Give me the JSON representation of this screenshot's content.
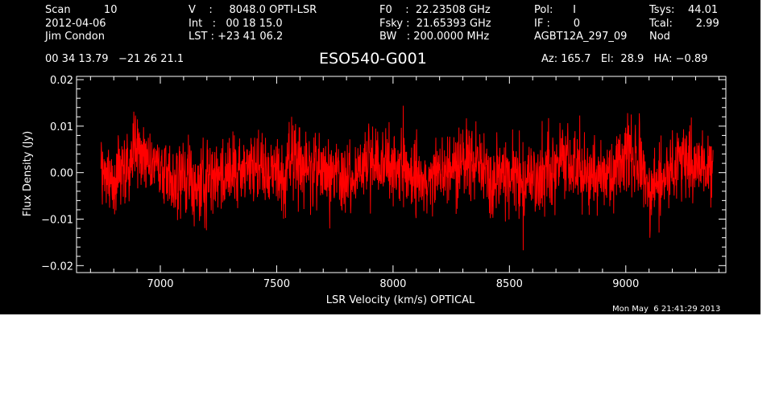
{
  "header": {
    "col1": [
      "Scan          10",
      "2012-04-06",
      "Jim Condon"
    ],
    "col2": [
      "V    :     8048.0 OPTI-LSR",
      "Int   :   00 18 15.0",
      "LST : +23 41 06.2"
    ],
    "col3": [
      "F0    :  22.23508 GHz",
      "Fsky :  21.65393 GHz",
      "BW   : 200.0000 MHz"
    ],
    "col4": [
      "Pol:      I",
      "IF :       0",
      "AGBT12A_297_09"
    ],
    "col5": [
      "Tsys:    44.01",
      "Tcal:       2.99",
      "Nod"
    ],
    "coords": "00 34 13.79   −21 26 21.1",
    "source": "ESO540-G001",
    "az_el_ha": "Az: 165.7   El:  28.9   HA: −0.89"
  },
  "timestamp": "Mon May  6 21:41:29 2013",
  "colors": {
    "background": "#000000",
    "axes": "#ffffff",
    "series": "#ff0000"
  },
  "chart_data": {
    "type": "line",
    "title": "ESO540-G001",
    "xlabel": "LSR Velocity (km/s) OPTICAL",
    "ylabel": "Flux Density (Jy)",
    "xlim": [
      6640,
      9430
    ],
    "ylim": [
      -0.0215,
      0.0207
    ],
    "xticks": [
      7000,
      7500,
      8000,
      8500,
      9000
    ],
    "xtick_labels": [
      "7000",
      "7500",
      "8000",
      "8500",
      "9000"
    ],
    "yticks": [
      -0.02,
      -0.01,
      0.0,
      0.01,
      0.02
    ],
    "ytick_labels": [
      "−0.02",
      "−0.01",
      "0.00",
      "0.01",
      "0.02"
    ],
    "grid": false,
    "legend": "none",
    "series": [
      {
        "color": "#ff0000",
        "x_range": [
          6745,
          9375
        ],
        "noise_sigma_approx": 0.004,
        "x": [
          6745,
          6800,
          6850,
          6900,
          6950,
          7000,
          7050,
          7100,
          7150,
          7200,
          7250,
          7300,
          7350,
          7400,
          7450,
          7500,
          7550,
          7600,
          7650,
          7700,
          7750,
          7800,
          7850,
          7900,
          7950,
          8000,
          8050,
          8100,
          8150,
          8200,
          8250,
          8300,
          8350,
          8400,
          8450,
          8500,
          8550,
          8600,
          8650,
          8700,
          8750,
          8800,
          8850,
          8900,
          8950,
          9000,
          9050,
          9100,
          9150,
          9200,
          9250,
          9300,
          9350,
          9375
        ],
        "y": [
          0.0,
          -0.001,
          0.002,
          0.005,
          0.002,
          0.001,
          -0.002,
          -0.001,
          -0.003,
          -0.002,
          0.0,
          -0.001,
          0.001,
          0.002,
          0.001,
          0.0,
          0.001,
          0.002,
          0.001,
          0.0,
          -0.001,
          -0.001,
          0.001,
          0.002,
          0.003,
          0.002,
          0.0,
          -0.002,
          -0.002,
          -0.001,
          0.001,
          0.002,
          0.002,
          0.0,
          -0.001,
          0.0,
          -0.002,
          -0.001,
          0.0,
          0.001,
          0.002,
          0.0,
          -0.001,
          0.0,
          0.001,
          0.005,
          0.002,
          -0.004,
          -0.001,
          0.001,
          0.002,
          0.002,
          0.002,
          0.001
        ]
      }
    ]
  }
}
